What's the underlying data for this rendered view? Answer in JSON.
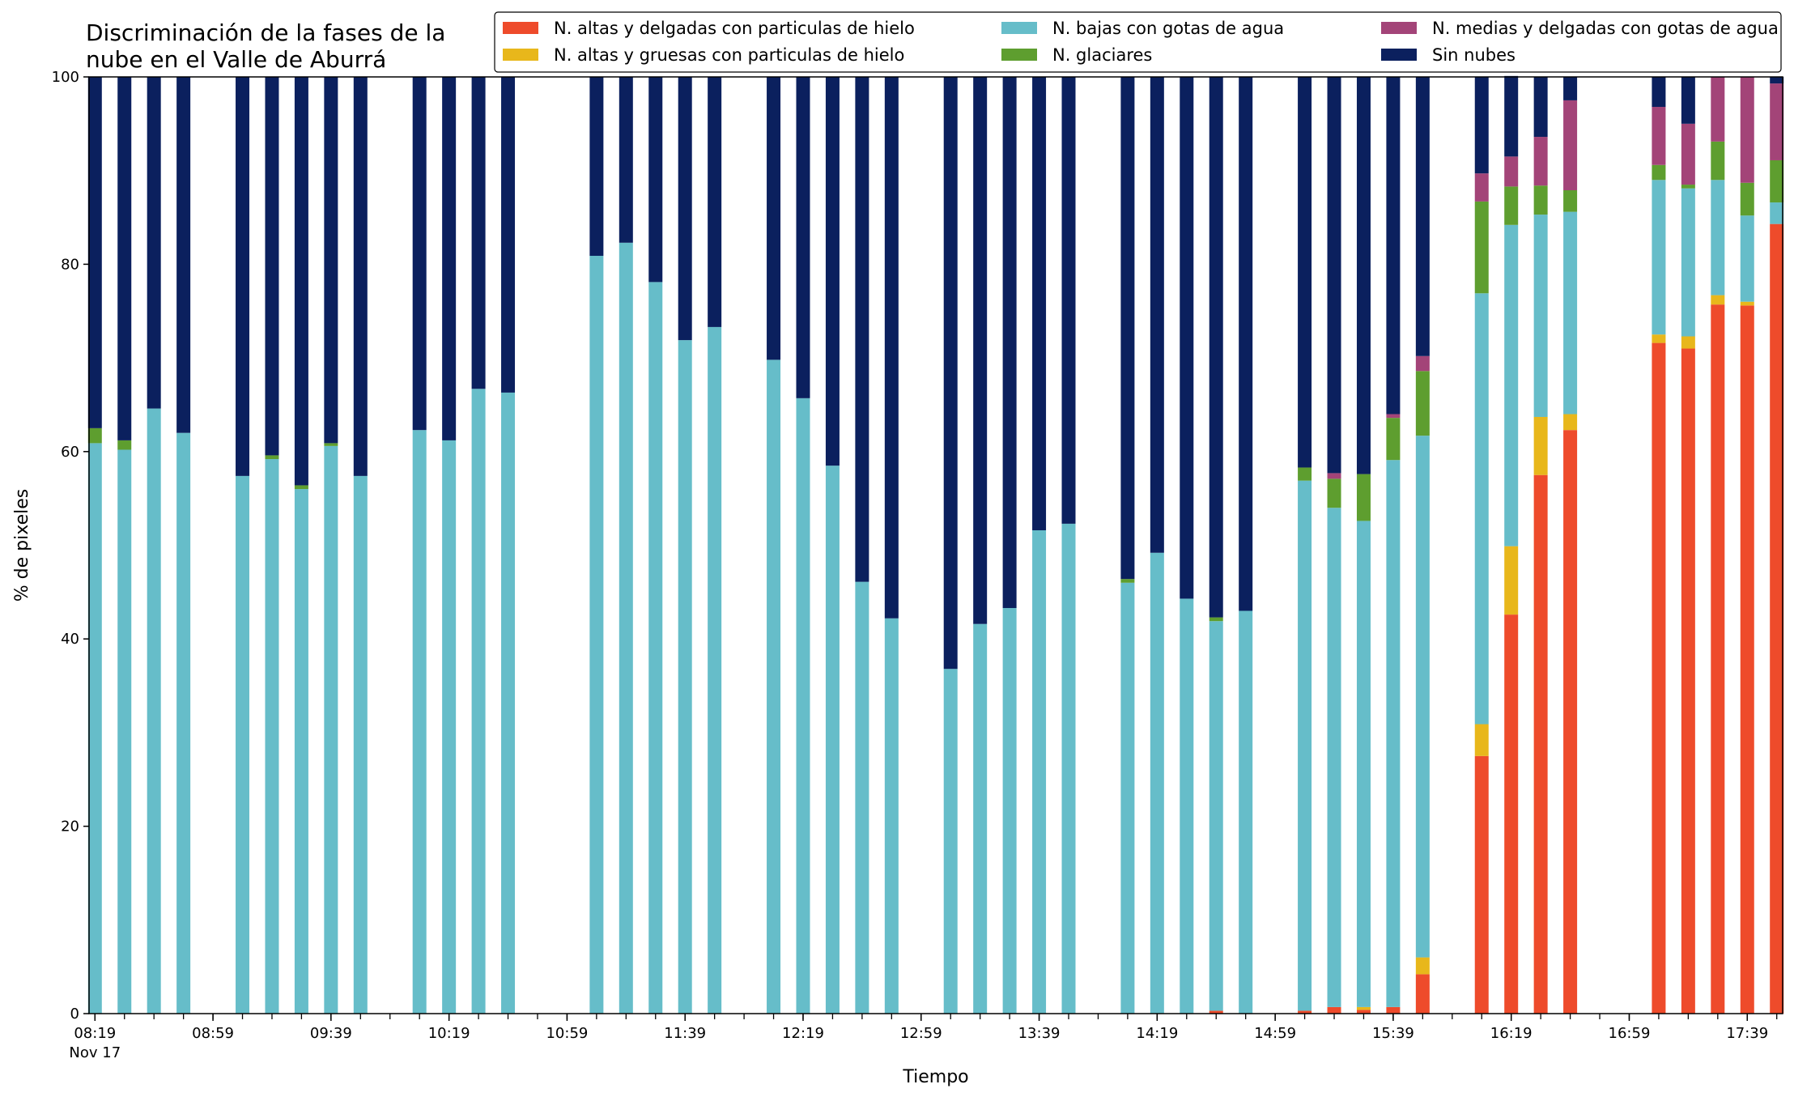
{
  "chart_data": {
    "type": "bar",
    "stacked": true,
    "title_lines": [
      "Discriminación de la fases de la",
      "nube en el Valle de Aburrá"
    ],
    "xlabel": "Tiempo",
    "ylabel": "% de pixeles",
    "ylim": [
      0,
      100
    ],
    "yticks": [
      0,
      20,
      40,
      60,
      80,
      100
    ],
    "x_axis": {
      "minor_tick_minutes": 10,
      "labeled_ticks": [
        "08:19",
        "08:59",
        "09:39",
        "10:19",
        "10:59",
        "11:39",
        "12:19",
        "12:59",
        "13:39",
        "14:19",
        "14:59",
        "15:39",
        "16:19",
        "16:59",
        "17:39"
      ],
      "date_label": "Nov 17",
      "range": [
        "08:17",
        "17:51"
      ]
    },
    "legend_placement": "top-right",
    "legend_columns": 3,
    "times": [
      "08:19",
      "08:29",
      "08:39",
      "08:49",
      "09:09",
      "09:19",
      "09:29",
      "09:39",
      "09:49",
      "10:09",
      "10:19",
      "10:29",
      "10:39",
      "11:09",
      "11:19",
      "11:29",
      "11:39",
      "11:49",
      "12:09",
      "12:19",
      "12:29",
      "12:39",
      "12:49",
      "13:09",
      "13:19",
      "13:29",
      "13:39",
      "13:49",
      "14:09",
      "14:19",
      "14:29",
      "14:39",
      "14:49",
      "15:09",
      "15:19",
      "15:29",
      "15:39",
      "15:49",
      "16:09",
      "16:19",
      "16:29",
      "16:39",
      "17:09",
      "17:19",
      "17:29",
      "17:39",
      "17:49"
    ],
    "series": [
      {
        "name": "N. altas y delgadas con particulas de hielo",
        "color": "#ee4b2b",
        "values": [
          0,
          0,
          0,
          0,
          0,
          0,
          0,
          0,
          0,
          0,
          0,
          0,
          0,
          0,
          0,
          0,
          0,
          0,
          0,
          0,
          0,
          0,
          0,
          0,
          0,
          0,
          0,
          0,
          0,
          0,
          0,
          0.3,
          0,
          0.3,
          0.7,
          0.4,
          0.7,
          4.2,
          27.5,
          42.6,
          57.5,
          62.3,
          71.6,
          71.0,
          75.7,
          75.6,
          84.3
        ]
      },
      {
        "name": "N. altas y gruesas con particulas de hielo",
        "color": "#e8b71b",
        "values": [
          0,
          0,
          0,
          0,
          0,
          0,
          0,
          0,
          0,
          0,
          0,
          0,
          0,
          0,
          0,
          0,
          0,
          0,
          0,
          0,
          0,
          0,
          0,
          0,
          0,
          0,
          0,
          0,
          0,
          0,
          0,
          0,
          0,
          0,
          0,
          0.3,
          0,
          1.8,
          3.4,
          7.3,
          6.2,
          1.7,
          0.9,
          1.3,
          1.0,
          0.4,
          0
        ]
      },
      {
        "name": "N. bajas con gotas de agua",
        "color": "#66bdc9",
        "values": [
          60.9,
          60.2,
          64.6,
          62.0,
          57.4,
          59.2,
          56.0,
          60.6,
          57.4,
          62.3,
          61.2,
          66.7,
          66.3,
          80.9,
          82.3,
          78.1,
          71.9,
          73.3,
          69.8,
          65.7,
          58.5,
          46.1,
          42.2,
          36.8,
          41.6,
          43.3,
          51.6,
          52.3,
          46.0,
          49.2,
          44.3,
          41.6,
          43.0,
          56.6,
          53.3,
          51.9,
          58.4,
          55.7,
          46.0,
          34.3,
          21.6,
          21.6,
          16.5,
          15.8,
          12.3,
          9.2,
          2.3
        ]
      },
      {
        "name": "N. glaciares",
        "color": "#5e9e2f",
        "values": [
          1.6,
          1.0,
          0,
          0,
          0,
          0.4,
          0.4,
          0.3,
          0,
          0,
          0,
          0,
          0,
          0,
          0,
          0,
          0,
          0,
          0,
          0,
          0,
          0,
          0,
          0,
          0,
          0,
          0,
          0,
          0.4,
          0,
          0,
          0.4,
          0,
          1.4,
          3.1,
          5.0,
          4.5,
          6.9,
          9.8,
          4.1,
          3.1,
          2.3,
          1.6,
          0.4,
          4.1,
          3.5,
          4.5
        ]
      },
      {
        "name": "N. medias y delgadas con gotas de agua",
        "color": "#a34478",
        "values": [
          0,
          0,
          0,
          0,
          0,
          0,
          0,
          0,
          0,
          0,
          0,
          0,
          0,
          0,
          0,
          0,
          0,
          0,
          0,
          0,
          0,
          0,
          0,
          0,
          0,
          0,
          0,
          0,
          0,
          0,
          0,
          0,
          0,
          0,
          0.6,
          0,
          0.4,
          1.6,
          3.0,
          3.2,
          5.2,
          9.6,
          6.2,
          6.5,
          6.9,
          11.3,
          8.2
        ]
      },
      {
        "name": "Sin nubes",
        "color": "#0b205e",
        "values": [
          37.5,
          38.8,
          35.4,
          38.0,
          42.6,
          40.4,
          43.6,
          39.1,
          42.6,
          37.7,
          38.8,
          33.3,
          33.7,
          19.1,
          17.7,
          21.9,
          28.1,
          26.7,
          30.2,
          34.3,
          41.5,
          53.9,
          57.8,
          63.2,
          58.4,
          56.7,
          48.4,
          47.7,
          53.6,
          50.8,
          55.7,
          57.7,
          57.0,
          41.7,
          42.3,
          42.4,
          36.0,
          29.8,
          10.3,
          8.6,
          6.4,
          2.5,
          3.2,
          5.0,
          0,
          0,
          0.7
        ]
      }
    ]
  }
}
